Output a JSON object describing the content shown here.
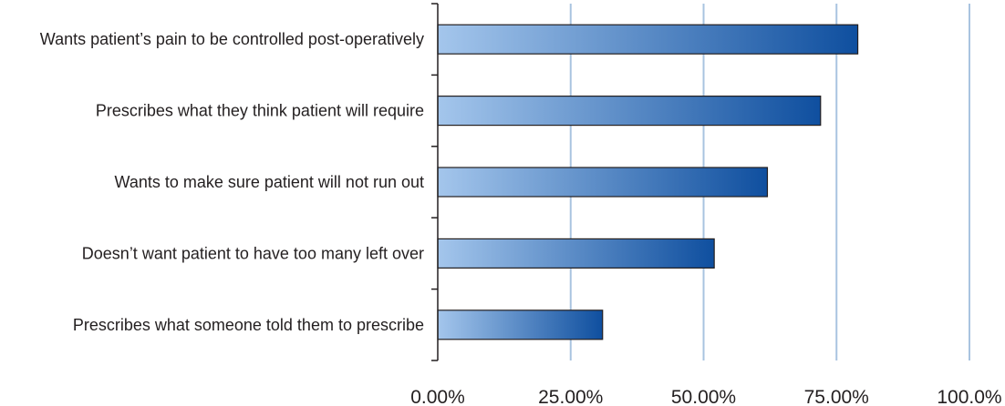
{
  "chart_data": {
    "type": "bar",
    "orientation": "horizontal",
    "categories": [
      "Wants patient’s pain to be controlled post-operatively",
      "Prescribes what they think patient will require",
      "Wants to make sure patient will not run out ",
      "Doesn’t want patient to have too many left over",
      "Prescribes what someone told them to prescribe"
    ],
    "values": [
      0.79,
      0.72,
      0.62,
      0.52,
      0.31
    ],
    "xlim": [
      0,
      1
    ],
    "xticks": [
      0,
      0.25,
      0.5,
      0.75,
      1.0
    ],
    "xtick_labels": [
      "0.00%",
      "25.00%",
      "50.00%",
      "75.00%",
      "100.0%"
    ],
    "title": "",
    "xlabel": "",
    "ylabel": "",
    "grid": "vertical",
    "legend": "none",
    "colors": {
      "bar_light": "#a4c6ec",
      "bar_dark": "#0f4f9f",
      "bar_stroke": "#231f20",
      "grid": "#a9c4e0",
      "axis": "#231f20"
    }
  }
}
